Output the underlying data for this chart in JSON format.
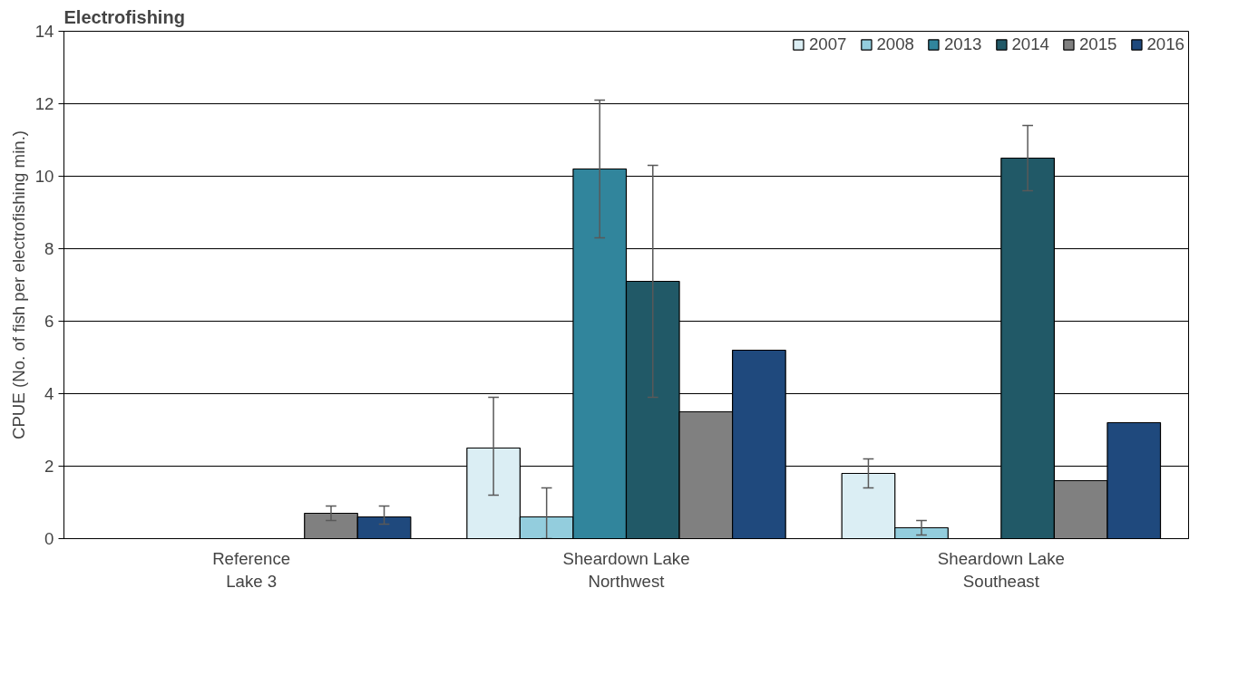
{
  "chart_data": {
    "type": "bar",
    "title": "Electrofishing",
    "ylabel": "CPUE (No. of fish per electrofishing min.)",
    "categories": [
      "Reference\nLake 3",
      "Sheardown Lake\nNorthwest",
      "Sheardown Lake\nSoutheast"
    ],
    "series": [
      {
        "name": "2007",
        "color": "#dbeef4",
        "values": [
          null,
          2.5,
          1.8
        ],
        "errors": [
          null,
          [
            1.2,
            3.9
          ],
          [
            1.4,
            2.2
          ]
        ]
      },
      {
        "name": "2008",
        "color": "#93cddd",
        "values": [
          null,
          0.6,
          0.3
        ],
        "errors": [
          null,
          [
            0,
            1.4
          ],
          [
            0.1,
            0.5
          ]
        ]
      },
      {
        "name": "2013",
        "color": "#31859c",
        "values": [
          null,
          10.2,
          null
        ],
        "errors": [
          null,
          [
            8.3,
            12.1
          ],
          null
        ]
      },
      {
        "name": "2014",
        "color": "#215967",
        "values": [
          null,
          7.1,
          10.5
        ],
        "errors": [
          null,
          [
            3.9,
            10.3
          ],
          [
            9.6,
            11.4
          ]
        ]
      },
      {
        "name": "2015",
        "color": "#808080",
        "values": [
          0.7,
          3.5,
          1.6
        ],
        "errors": [
          [
            0.5,
            0.9
          ],
          null,
          null
        ]
      },
      {
        "name": "2016",
        "color": "#1f497d",
        "values": [
          0.6,
          5.2,
          3.2
        ],
        "errors": [
          [
            0.4,
            0.9
          ],
          null,
          null
        ]
      }
    ],
    "ylim": [
      0,
      14
    ],
    "yticks": [
      0,
      2,
      4,
      6,
      8,
      10,
      12,
      14
    ],
    "grid": "y",
    "legend": "top right"
  }
}
